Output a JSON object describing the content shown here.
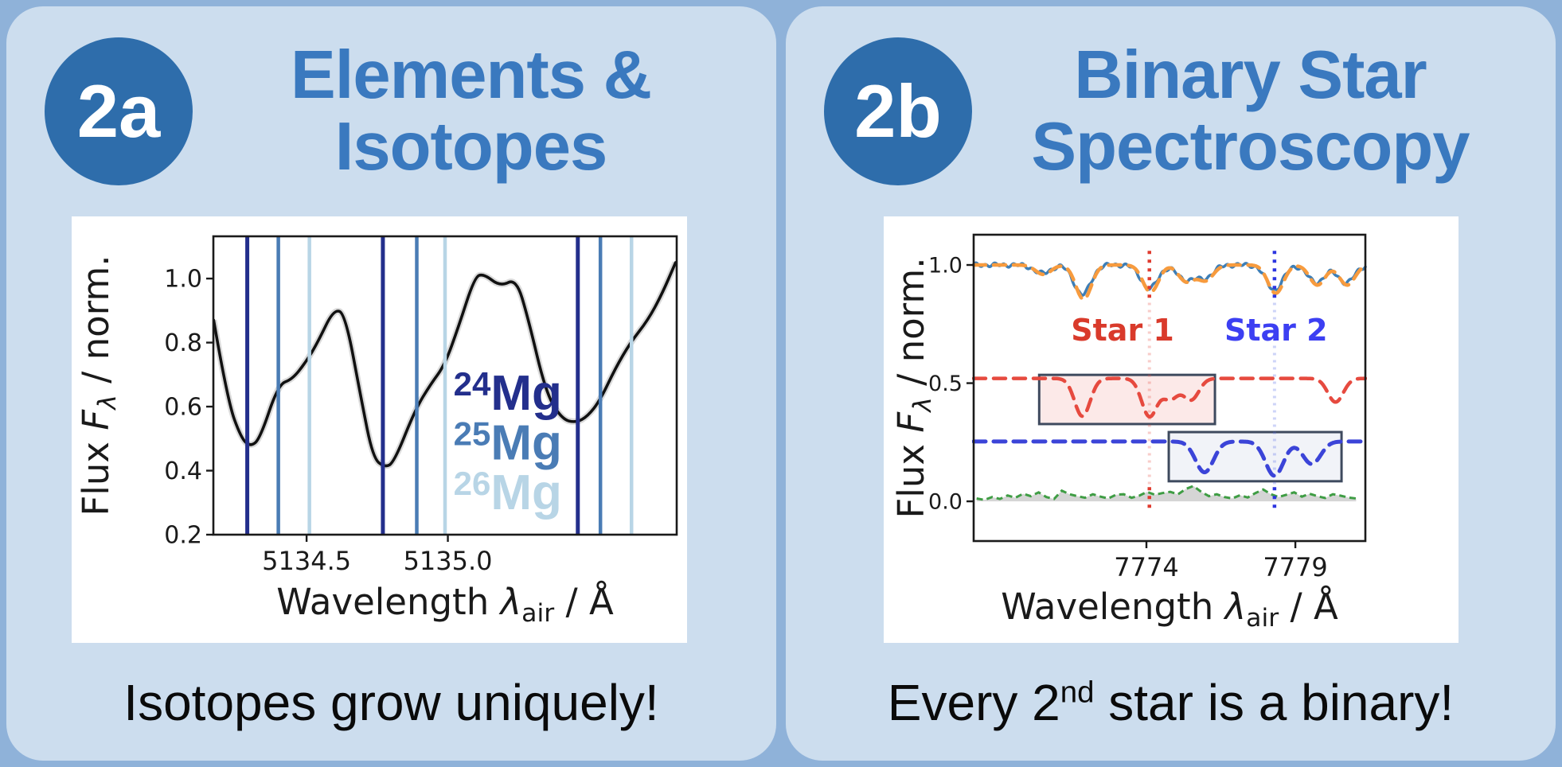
{
  "page": {
    "background": "#8fb2d9",
    "panel_background": "#ccddee",
    "badge_color": "#2e6dab",
    "title_color": "#3a79bf",
    "caption_color": "#0a0a0a"
  },
  "panels": [
    {
      "badge": "2a",
      "title_lines": [
        "Elements &",
        "Isotopes"
      ],
      "caption_parts": [
        {
          "t": "Isotopes grow uniquely!"
        }
      ]
    },
    {
      "badge": "2b",
      "title_lines": [
        "Binary Star",
        "Spectroscopy"
      ],
      "caption_parts": [
        {
          "t": "Every 2"
        },
        {
          "t": "nd",
          "sup": true
        },
        {
          "t": " star is a binary!"
        }
      ]
    }
  ],
  "chart_data": [
    {
      "id": "isotopes",
      "type": "line",
      "title": "",
      "xlabel": "Wavelength λ_air / Å",
      "ylabel": "Flux F_λ / norm.",
      "xlabel_parts": [
        {
          "t": "Wavelength "
        },
        {
          "t": "λ",
          "italic": true
        },
        {
          "t": "air",
          "sub": true
        },
        {
          "t": " / Å"
        }
      ],
      "ylabel_parts": [
        {
          "t": "Flux "
        },
        {
          "t": "F",
          "italic": true
        },
        {
          "t": "λ",
          "sub": true,
          "italic": true
        },
        {
          "t": " / norm."
        }
      ],
      "xlim": [
        5134.17,
        5135.81
      ],
      "ylim": [
        0.2,
        1.132
      ],
      "grid": false,
      "xticks": [
        {
          "v": 5134.5,
          "label": "5134.5"
        },
        {
          "v": 5135.0,
          "label": "5135.0"
        }
      ],
      "yticks": [
        {
          "v": 0.2,
          "label": "0.2"
        },
        {
          "v": 0.4,
          "label": "0.4"
        },
        {
          "v": 0.6,
          "label": "0.6"
        },
        {
          "v": 0.8,
          "label": "0.8"
        },
        {
          "v": 1.0,
          "label": "1.0"
        }
      ],
      "spectrum_color": "#111111",
      "spectrum": [
        [
          5134.171,
          0.87
        ],
        [
          5134.22,
          0.62
        ],
        [
          5134.269,
          0.5
        ],
        [
          5134.302,
          0.475
        ],
        [
          5134.335,
          0.5
        ],
        [
          5134.4,
          0.67
        ],
        [
          5134.449,
          0.685
        ],
        [
          5134.498,
          0.74
        ],
        [
          5134.539,
          0.8
        ],
        [
          5134.596,
          0.905
        ],
        [
          5134.637,
          0.89
        ],
        [
          5134.694,
          0.62
        ],
        [
          5134.735,
          0.44
        ],
        [
          5134.776,
          0.41
        ],
        [
          5134.809,
          0.425
        ],
        [
          5134.884,
          0.59
        ],
        [
          5134.939,
          0.67
        ],
        [
          5134.989,
          0.73
        ],
        [
          5135.038,
          0.85
        ],
        [
          5135.095,
          1.005
        ],
        [
          5135.127,
          1.015
        ],
        [
          5135.185,
          0.975
        ],
        [
          5135.242,
          1.0
        ],
        [
          5135.283,
          0.88
        ],
        [
          5135.348,
          0.64
        ],
        [
          5135.405,
          0.56
        ],
        [
          5135.454,
          0.55
        ],
        [
          5135.495,
          0.57
        ],
        [
          5135.539,
          0.62
        ],
        [
          5135.593,
          0.72
        ],
        [
          5135.646,
          0.8
        ],
        [
          5135.708,
          0.87
        ],
        [
          5135.757,
          0.95
        ],
        [
          5135.806,
          1.05
        ]
      ],
      "isotopes": [
        {
          "name": "24Mg",
          "sup": "24",
          "symbol": "Mg",
          "color": "#232f8c",
          "line_width": 5,
          "wavelengths": [
            5134.29,
            5134.77,
            5135.46
          ],
          "label_x": 5135.02,
          "label_y": 0.59
        },
        {
          "name": "25Mg",
          "sup": "25",
          "symbol": "Mg",
          "color": "#4a7cb5",
          "line_width": 4.5,
          "wavelengths": [
            5134.4,
            5134.89,
            5135.54
          ],
          "label_x": 5135.02,
          "label_y": 0.435
        },
        {
          "name": "26Mg",
          "sup": "26",
          "symbol": "Mg",
          "color": "#b8d5e6",
          "line_width": 4.5,
          "wavelengths": [
            5134.51,
            5134.99,
            5135.65
          ],
          "label_x": 5135.02,
          "label_y": 0.28
        }
      ]
    },
    {
      "id": "binary",
      "type": "line",
      "title": "",
      "xlabel": "Wavelength λ_air / Å",
      "ylabel": "Flux F_λ / norm.",
      "xlabel_parts": [
        {
          "t": "Wavelength "
        },
        {
          "t": "λ",
          "italic": true
        },
        {
          "t": "air",
          "sub": true
        },
        {
          "t": " / Å"
        }
      ],
      "ylabel_parts": [
        {
          "t": "Flux "
        },
        {
          "t": "F",
          "italic": true
        },
        {
          "t": "λ",
          "sub": true,
          "italic": true
        },
        {
          "t": " / norm."
        }
      ],
      "xlim": [
        7768.2,
        7781.35
      ],
      "ylim": [
        -0.168,
        1.128
      ],
      "grid": false,
      "xticks": [
        {
          "v": 7774,
          "label": "7774"
        },
        {
          "v": 7779,
          "label": "7779"
        }
      ],
      "yticks": [
        {
          "v": 0.0,
          "label": "0.0"
        },
        {
          "v": 0.5,
          "label": "0.5"
        },
        {
          "v": 1.0,
          "label": "1.0"
        }
      ],
      "series": [
        {
          "name": "composite observed",
          "color": "#3d7eb6",
          "style": "solid",
          "width": 3.5,
          "base": 1.0,
          "sigma": 0.28,
          "ripple": 0.006,
          "offset": 0,
          "lines": [
            {
              "c": 7770.5,
              "d": 0.035
            },
            {
              "c": 7771.85,
              "d": 0.125
            },
            {
              "c": 7774.1,
              "d": 0.1
            },
            {
              "c": 7775.3,
              "d": 0.06
            },
            {
              "c": 7775.95,
              "d": 0.055
            },
            {
              "c": 7778.3,
              "d": 0.105
            },
            {
              "c": 7779.7,
              "d": 0.075
            },
            {
              "c": 7780.7,
              "d": 0.075
            }
          ]
        },
        {
          "name": "composite model",
          "color": "#f79b3e",
          "style": "dashed",
          "width": 4.5,
          "base": 1.0,
          "sigma": 0.26,
          "ripple": 0,
          "offset": 0.04,
          "lines": [
            {
              "c": 7770.5,
              "d": 0.04
            },
            {
              "c": 7771.85,
              "d": 0.145
            },
            {
              "c": 7774.1,
              "d": 0.115
            },
            {
              "c": 7775.3,
              "d": 0.07
            },
            {
              "c": 7775.95,
              "d": 0.065
            },
            {
              "c": 7778.3,
              "d": 0.12
            },
            {
              "c": 7779.7,
              "d": 0.085
            },
            {
              "c": 7780.7,
              "d": 0.085
            }
          ]
        },
        {
          "name": "Star 1 template",
          "color": "#e64a3f",
          "style": "dashed",
          "width": 4.5,
          "base": 0.52,
          "sigma": 0.26,
          "ripple": 0,
          "offset": 0,
          "lines": [
            {
              "c": 7771.85,
              "d": 0.16
            },
            {
              "c": 7774.1,
              "d": 0.16
            },
            {
              "c": 7774.8,
              "d": 0.085
            },
            {
              "c": 7775.5,
              "d": 0.09
            },
            {
              "c": 7780.35,
              "d": 0.1
            }
          ]
        },
        {
          "name": "Star 2 template",
          "color": "#3b44d8",
          "style": "dashed",
          "width": 5,
          "base": 0.253,
          "sigma": 0.3,
          "ripple": 0,
          "offset": 0,
          "lines": [
            {
              "c": 7775.95,
              "d": 0.13
            },
            {
              "c": 7778.3,
              "d": 0.145
            },
            {
              "c": 7779.55,
              "d": 0.095
            }
          ]
        }
      ],
      "residuals": {
        "color": "#3f9d44",
        "fill": "#bfbfbf",
        "x0": 7768.3,
        "dx": 0.26,
        "values": [
          0.012,
          0.006,
          0.018,
          0.01,
          0.025,
          0.015,
          0.032,
          0.022,
          0.038,
          0.018,
          0.01,
          0.045,
          0.03,
          0.022,
          0.015,
          0.03,
          0.02,
          0.012,
          0.028,
          0.03,
          0.015,
          0.024,
          0.04,
          0.028,
          0.035,
          0.04,
          0.03,
          0.052,
          0.065,
          0.04,
          0.022,
          0.03,
          0.018,
          0.012,
          0.026,
          0.016,
          0.035,
          0.05,
          0.03,
          0.018,
          0.028,
          0.038,
          0.02,
          0.032,
          0.022,
          0.014,
          0.03,
          0.024,
          0.016,
          0.012
        ]
      },
      "boxes": [
        {
          "name": "star1-box",
          "x1": 7770.4,
          "x2": 7776.3,
          "y1": 0.327,
          "y2": 0.535,
          "fill": "rgba(231,74,63,0.12)",
          "stroke": "#3e4a5e"
        },
        {
          "name": "star2-box",
          "x1": 7774.75,
          "x2": 7780.55,
          "y1": 0.085,
          "y2": 0.293,
          "fill": "rgba(120,140,190,0.10)",
          "stroke": "#3e4a5e"
        }
      ],
      "vlines": [
        {
          "x": 7774.1,
          "strong": "#e03b2f",
          "faint": "rgba(230,74,63,0.28)"
        },
        {
          "x": 7778.3,
          "strong": "#2c35e0",
          "faint": "rgba(80,100,230,0.28)"
        }
      ],
      "annotations": [
        {
          "text": "Star 1",
          "x": 7773.2,
          "y": 0.68,
          "color": "#d93a2b"
        },
        {
          "text": "Star 2",
          "x": 7778.35,
          "y": 0.68,
          "color": "#3c3ff2"
        }
      ]
    }
  ]
}
